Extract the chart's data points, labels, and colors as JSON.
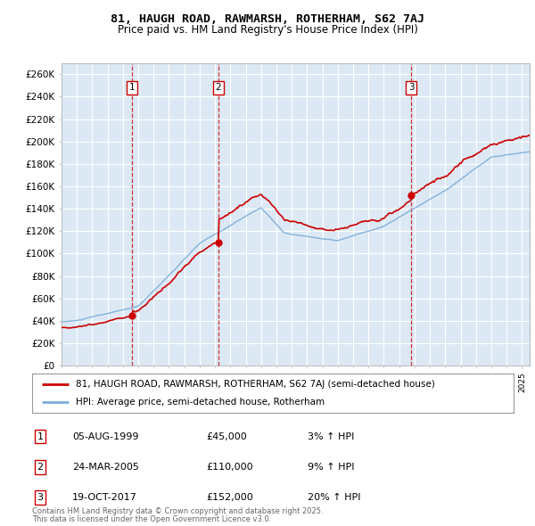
{
  "title1": "81, HAUGH ROAD, RAWMARSH, ROTHERHAM, S62 7AJ",
  "title2": "Price paid vs. HM Land Registry's House Price Index (HPI)",
  "ylabel_ticks": [
    "£0",
    "£20K",
    "£40K",
    "£60K",
    "£80K",
    "£100K",
    "£120K",
    "£140K",
    "£160K",
    "£180K",
    "£200K",
    "£220K",
    "£240K",
    "£260K"
  ],
  "ytick_values": [
    0,
    20000,
    40000,
    60000,
    80000,
    100000,
    120000,
    140000,
    160000,
    180000,
    200000,
    220000,
    240000,
    260000
  ],
  "ylim": [
    0,
    270000
  ],
  "xlim_start": 1995,
  "xlim_end": 2025.5,
  "sale_dates": [
    1999.59,
    2005.22,
    2017.79
  ],
  "sale_prices": [
    45000,
    110000,
    152000
  ],
  "sale_labels": [
    "1",
    "2",
    "3"
  ],
  "sale_info": [
    {
      "label": "1",
      "date": "05-AUG-1999",
      "price": "£45,000",
      "change": "3% ↑ HPI"
    },
    {
      "label": "2",
      "date": "24-MAR-2005",
      "price": "£110,000",
      "change": "9% ↑ HPI"
    },
    {
      "label": "3",
      "date": "19-OCT-2017",
      "price": "£152,000",
      "change": "20% ↑ HPI"
    }
  ],
  "legend_line1": "81, HAUGH ROAD, RAWMARSH, ROTHERHAM, S62 7AJ (semi-detached house)",
  "legend_line2": "HPI: Average price, semi-detached house, Rotherham",
  "footer1": "Contains HM Land Registry data © Crown copyright and database right 2025.",
  "footer2": "This data is licensed under the Open Government Licence v3.0.",
  "line_color": "#cc0000",
  "hpi_color": "#7aacda",
  "bg_color": "#dce9f5",
  "grid_color": "#ffffff",
  "vline_color": "#cc0000",
  "box_color": "#cc0000"
}
